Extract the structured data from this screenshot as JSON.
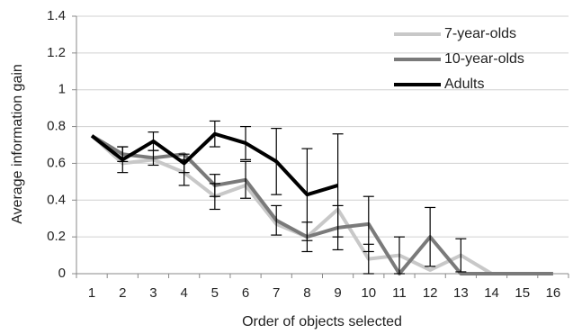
{
  "chart_data": {
    "type": "line",
    "x_label": "Order of objects selected",
    "y_label": "Average information gain",
    "categories": [
      "1",
      "2",
      "3",
      "4",
      "5",
      "6",
      "7",
      "8",
      "9",
      "10",
      "11",
      "12",
      "13",
      "14",
      "15",
      "16"
    ],
    "series": [
      {
        "name": "7-year-olds",
        "color": "#c8c8c8",
        "values": [
          0.75,
          0.6,
          0.62,
          0.55,
          0.42,
          0.48,
          0.27,
          0.2,
          0.35,
          0.08,
          0.1,
          0.02,
          0.1,
          0,
          0,
          0
        ],
        "errors": [
          null,
          null,
          null,
          0.07,
          0.07,
          null,
          null,
          null,
          null,
          0.08,
          0.1,
          null,
          0.09,
          null,
          null,
          null
        ]
      },
      {
        "name": "10-year-olds",
        "color": "#7a7a7a",
        "values": [
          0.75,
          0.65,
          0.63,
          0.65,
          0.48,
          0.51,
          0.29,
          0.2,
          0.25,
          0.27,
          0,
          0.2,
          0,
          0,
          0,
          0
        ],
        "errors": [
          null,
          0.04,
          0.04,
          null,
          0.06,
          0.1,
          0.08,
          0.08,
          0.12,
          0.15,
          null,
          0.16,
          null,
          null,
          null,
          null
        ]
      },
      {
        "name": "Adults",
        "color": "#000000",
        "values": [
          0.75,
          0.62,
          0.72,
          0.6,
          0.76,
          0.71,
          0.61,
          0.43,
          0.48,
          null,
          null,
          null,
          null,
          null,
          null,
          null
        ],
        "errors": [
          null,
          0.07,
          0.05,
          0.05,
          0.07,
          0.09,
          0.18,
          0.25,
          0.28,
          null,
          null,
          null,
          null,
          null,
          null,
          null
        ]
      }
    ],
    "ylim": [
      0,
      1.4
    ],
    "yticks": [
      0,
      0.2,
      0.4,
      0.6,
      0.8,
      1,
      1.2,
      1.4
    ],
    "grid": true,
    "legend": "upper right"
  }
}
